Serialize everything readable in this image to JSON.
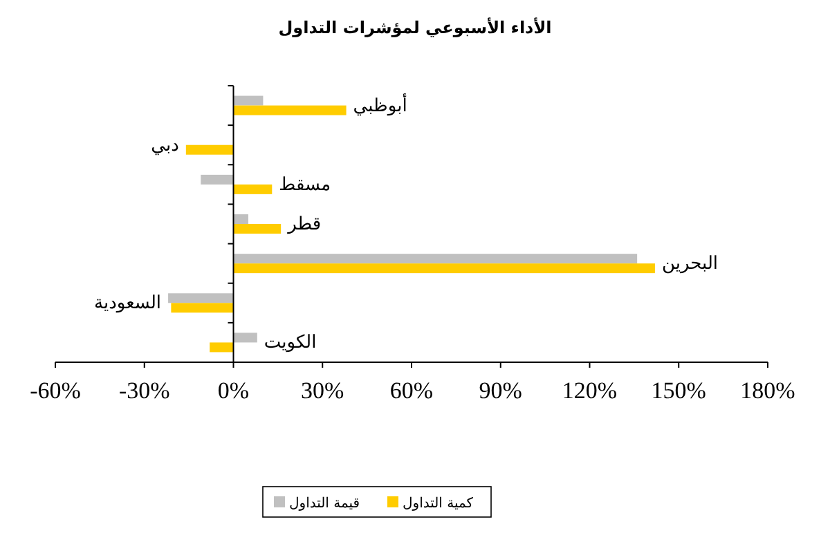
{
  "chart_data": {
    "type": "bar",
    "orientation": "horizontal",
    "title": "الأداء الأسبوعي لمؤشرات التداول",
    "categories": [
      "أبوظبي",
      "دبي",
      "مسقط",
      "قطر",
      "البحرين",
      "السعودية",
      "الكويت"
    ],
    "series": [
      {
        "name": "قيمة التداول",
        "color": "#c0c0c0",
        "values": [
          10,
          null,
          -11,
          5,
          136,
          -22,
          8
        ]
      },
      {
        "name": "كمية التداول",
        "color": "#ffcc00",
        "values": [
          38,
          -16,
          13,
          16,
          142,
          -21,
          -8
        ]
      }
    ],
    "xlim": [
      -60,
      180
    ],
    "xticks": [
      {
        "value": -60,
        "label": "-60%"
      },
      {
        "value": -30,
        "label": "-30%"
      },
      {
        "value": 0,
        "label": "0%"
      },
      {
        "value": 30,
        "label": "30%"
      },
      {
        "value": 60,
        "label": "60%"
      },
      {
        "value": 90,
        "label": "90%"
      },
      {
        "value": 120,
        "label": "120%"
      },
      {
        "value": 150,
        "label": "150%"
      },
      {
        "value": 180,
        "label": "180%"
      }
    ],
    "legend": "bottom",
    "grid": false
  }
}
